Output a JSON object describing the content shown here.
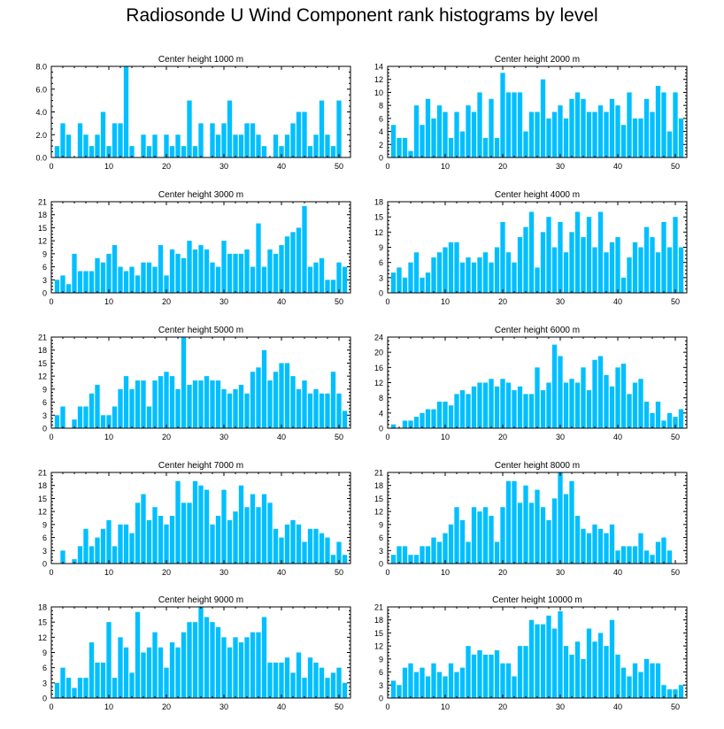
{
  "title": "Radiosonde U Wind Component rank histograms by level",
  "bar_color": "#00bfff",
  "chart_data": [
    {
      "type": "bar",
      "title": "Center height 1000 m",
      "xlabel": "",
      "ylabel": "",
      "xlim": [
        0,
        52
      ],
      "ylim": [
        0,
        8
      ],
      "xticks": [
        0,
        10,
        20,
        30,
        40,
        50
      ],
      "yticks": [
        0,
        2,
        4,
        6,
        8
      ],
      "ytick_labels": [
        "0.0",
        "2.0",
        "4.0",
        "6.0",
        "8.0"
      ],
      "categories": [
        1,
        2,
        3,
        4,
        5,
        6,
        7,
        8,
        9,
        10,
        11,
        12,
        13,
        14,
        15,
        16,
        17,
        18,
        19,
        20,
        21,
        22,
        23,
        24,
        25,
        26,
        27,
        28,
        29,
        30,
        31,
        32,
        33,
        34,
        35,
        36,
        37,
        38,
        39,
        40,
        41,
        42,
        43,
        44,
        45,
        46,
        47,
        48,
        49,
        50,
        51
      ],
      "values": [
        1,
        3,
        2,
        0,
        3,
        2,
        1,
        2,
        4,
        1,
        3,
        3,
        8,
        1,
        0,
        2,
        1,
        2,
        0,
        2,
        1,
        2,
        1,
        5,
        1,
        3,
        0,
        3,
        2,
        3,
        5,
        2,
        2,
        3,
        3,
        2,
        1,
        0,
        2,
        1,
        2,
        3,
        4,
        4,
        1,
        2,
        5,
        2,
        1,
        5,
        0
      ]
    },
    {
      "type": "bar",
      "title": "Center height 2000 m",
      "xlabel": "",
      "ylabel": "",
      "xlim": [
        0,
        52
      ],
      "ylim": [
        0,
        14
      ],
      "xticks": [
        0,
        10,
        20,
        30,
        40,
        50
      ],
      "yticks": [
        0,
        2,
        4,
        6,
        8,
        10,
        12,
        14
      ],
      "ytick_labels": [
        "0",
        "2",
        "4",
        "6",
        "8",
        "10",
        "12",
        "14"
      ],
      "categories": [
        1,
        2,
        3,
        4,
        5,
        6,
        7,
        8,
        9,
        10,
        11,
        12,
        13,
        14,
        15,
        16,
        17,
        18,
        19,
        20,
        21,
        22,
        23,
        24,
        25,
        26,
        27,
        28,
        29,
        30,
        31,
        32,
        33,
        34,
        35,
        36,
        37,
        38,
        39,
        40,
        41,
        42,
        43,
        44,
        45,
        46,
        47,
        48,
        49,
        50,
        51
      ],
      "values": [
        5,
        3,
        3,
        1,
        8,
        5,
        9,
        6,
        8,
        7,
        3,
        7,
        4,
        8,
        7,
        10,
        3,
        9,
        3,
        13,
        10,
        10,
        10,
        4,
        7,
        7,
        12,
        6,
        7,
        8,
        6,
        9,
        10,
        9,
        7,
        7,
        8,
        7,
        9,
        8,
        5,
        10,
        6,
        6,
        9,
        7,
        11,
        10,
        4,
        10,
        6
      ]
    },
    {
      "type": "bar",
      "title": "Center height 3000 m",
      "xlabel": "",
      "ylabel": "",
      "xlim": [
        0,
        52
      ],
      "ylim": [
        0,
        21
      ],
      "xticks": [
        0,
        10,
        20,
        30,
        40,
        50
      ],
      "yticks": [
        0,
        3,
        6,
        9,
        12,
        15,
        18,
        21
      ],
      "ytick_labels": [
        "0",
        "3",
        "6",
        "9",
        "12",
        "15",
        "18",
        "21"
      ],
      "categories": [
        1,
        2,
        3,
        4,
        5,
        6,
        7,
        8,
        9,
        10,
        11,
        12,
        13,
        14,
        15,
        16,
        17,
        18,
        19,
        20,
        21,
        22,
        23,
        24,
        25,
        26,
        27,
        28,
        29,
        30,
        31,
        32,
        33,
        34,
        35,
        36,
        37,
        38,
        39,
        40,
        41,
        42,
        43,
        44,
        45,
        46,
        47,
        48,
        49,
        50,
        51
      ],
      "values": [
        3,
        4,
        2,
        9,
        5,
        5,
        5,
        8,
        7,
        9,
        11,
        6,
        5,
        6,
        4,
        7,
        7,
        6,
        11,
        4,
        10,
        9,
        8,
        12,
        10,
        11,
        10,
        7,
        6,
        12,
        9,
        9,
        9,
        10,
        6,
        16,
        6,
        10,
        9,
        11,
        13,
        14,
        15,
        20,
        6,
        7,
        8,
        3,
        3,
        7,
        6
      ]
    },
    {
      "type": "bar",
      "title": "Center height 4000 m",
      "xlabel": "",
      "ylabel": "",
      "xlim": [
        0,
        52
      ],
      "ylim": [
        0,
        18
      ],
      "xticks": [
        0,
        10,
        20,
        30,
        40,
        50
      ],
      "yticks": [
        0,
        3,
        6,
        9,
        12,
        15,
        18
      ],
      "ytick_labels": [
        "0",
        "3",
        "6",
        "9",
        "12",
        "15",
        "18"
      ],
      "categories": [
        1,
        2,
        3,
        4,
        5,
        6,
        7,
        8,
        9,
        10,
        11,
        12,
        13,
        14,
        15,
        16,
        17,
        18,
        19,
        20,
        21,
        22,
        23,
        24,
        25,
        26,
        27,
        28,
        29,
        30,
        31,
        32,
        33,
        34,
        35,
        36,
        37,
        38,
        39,
        40,
        41,
        42,
        43,
        44,
        45,
        46,
        47,
        48,
        49,
        50,
        51
      ],
      "values": [
        4,
        5,
        3,
        6,
        8,
        3,
        4,
        7,
        8,
        9,
        10,
        10,
        6,
        7,
        6,
        7,
        8,
        6,
        9,
        14,
        8,
        6,
        11,
        13,
        16,
        5,
        12,
        15,
        9,
        14,
        8,
        12,
        16,
        11,
        15,
        9,
        16,
        8,
        10,
        11,
        3,
        7,
        10,
        9,
        13,
        11,
        8,
        14,
        9,
        15,
        9
      ]
    },
    {
      "type": "bar",
      "title": "Center height 5000 m",
      "xlabel": "",
      "ylabel": "",
      "xlim": [
        0,
        52
      ],
      "ylim": [
        0,
        21
      ],
      "xticks": [
        0,
        10,
        20,
        30,
        40,
        50
      ],
      "yticks": [
        0,
        3,
        6,
        9,
        12,
        15,
        18,
        21
      ],
      "ytick_labels": [
        "0",
        "3",
        "6",
        "9",
        "12",
        "15",
        "18",
        "21"
      ],
      "categories": [
        1,
        2,
        3,
        4,
        5,
        6,
        7,
        8,
        9,
        10,
        11,
        12,
        13,
        14,
        15,
        16,
        17,
        18,
        19,
        20,
        21,
        22,
        23,
        24,
        25,
        26,
        27,
        28,
        29,
        30,
        31,
        32,
        33,
        34,
        35,
        36,
        37,
        38,
        39,
        40,
        41,
        42,
        43,
        44,
        45,
        46,
        47,
        48,
        49,
        50,
        51
      ],
      "values": [
        3,
        5,
        0,
        2,
        5,
        5,
        8,
        10,
        3,
        3,
        5,
        9,
        12,
        9,
        11,
        11,
        5,
        11,
        12,
        13,
        12,
        9,
        21,
        10,
        11,
        11,
        12,
        11,
        11,
        9,
        8,
        9,
        10,
        8,
        13,
        14,
        18,
        11,
        13,
        15,
        15,
        12,
        9,
        11,
        8,
        9,
        8,
        8,
        13,
        8,
        4
      ]
    },
    {
      "type": "bar",
      "title": "Center height 6000 m",
      "xlabel": "",
      "ylabel": "",
      "xlim": [
        0,
        52
      ],
      "ylim": [
        0,
        24
      ],
      "xticks": [
        0,
        10,
        20,
        30,
        40,
        50
      ],
      "yticks": [
        0,
        4,
        8,
        12,
        16,
        20,
        24
      ],
      "ytick_labels": [
        "0",
        "4",
        "8",
        "12",
        "16",
        "20",
        "24"
      ],
      "categories": [
        1,
        2,
        3,
        4,
        5,
        6,
        7,
        8,
        9,
        10,
        11,
        12,
        13,
        14,
        15,
        16,
        17,
        18,
        19,
        20,
        21,
        22,
        23,
        24,
        25,
        26,
        27,
        28,
        29,
        30,
        31,
        32,
        33,
        34,
        35,
        36,
        37,
        38,
        39,
        40,
        41,
        42,
        43,
        44,
        45,
        46,
        47,
        48,
        49,
        50,
        51
      ],
      "values": [
        1,
        0,
        2,
        2,
        3,
        4,
        5,
        5,
        7,
        7,
        6,
        9,
        10,
        9,
        11,
        12,
        12,
        13,
        11,
        13,
        12,
        10,
        11,
        9,
        9,
        16,
        10,
        12,
        22,
        19,
        12,
        13,
        12,
        16,
        10,
        18,
        19,
        14,
        11,
        16,
        17,
        9,
        12,
        13,
        7,
        4,
        7,
        2,
        4,
        3,
        5
      ]
    },
    {
      "type": "bar",
      "title": "Center height 7000 m",
      "xlabel": "",
      "ylabel": "",
      "xlim": [
        0,
        52
      ],
      "ylim": [
        0,
        21
      ],
      "xticks": [
        0,
        10,
        20,
        30,
        40,
        50
      ],
      "yticks": [
        0,
        3,
        6,
        9,
        12,
        15,
        18,
        21
      ],
      "ytick_labels": [
        "0",
        "3",
        "6",
        "9",
        "12",
        "15",
        "18",
        "21"
      ],
      "categories": [
        1,
        2,
        3,
        4,
        5,
        6,
        7,
        8,
        9,
        10,
        11,
        12,
        13,
        14,
        15,
        16,
        17,
        18,
        19,
        20,
        21,
        22,
        23,
        24,
        25,
        26,
        27,
        28,
        29,
        30,
        31,
        32,
        33,
        34,
        35,
        36,
        37,
        38,
        39,
        40,
        41,
        42,
        43,
        44,
        45,
        46,
        47,
        48,
        49,
        50,
        51
      ],
      "values": [
        0,
        3,
        0,
        1,
        4,
        8,
        4,
        6,
        8,
        10,
        4,
        9,
        9,
        7,
        14,
        16,
        10,
        13,
        11,
        9,
        11,
        19,
        14,
        14,
        19,
        18,
        17,
        9,
        11,
        17,
        10,
        12,
        18,
        13,
        16,
        13,
        16,
        14,
        8,
        6,
        9,
        10,
        9,
        5,
        8,
        8,
        7,
        6,
        2,
        5,
        2
      ]
    },
    {
      "type": "bar",
      "title": "Center height 8000 m",
      "xlabel": "",
      "ylabel": "",
      "xlim": [
        0,
        52
      ],
      "ylim": [
        0,
        21
      ],
      "xticks": [
        0,
        10,
        20,
        30,
        40,
        50
      ],
      "yticks": [
        0,
        3,
        6,
        9,
        12,
        15,
        18,
        21
      ],
      "ytick_labels": [
        "0",
        "3",
        "6",
        "9",
        "12",
        "15",
        "18",
        "21"
      ],
      "categories": [
        1,
        2,
        3,
        4,
        5,
        6,
        7,
        8,
        9,
        10,
        11,
        12,
        13,
        14,
        15,
        16,
        17,
        18,
        19,
        20,
        21,
        22,
        23,
        24,
        25,
        26,
        27,
        28,
        29,
        30,
        31,
        32,
        33,
        34,
        35,
        36,
        37,
        38,
        39,
        40,
        41,
        42,
        43,
        44,
        45,
        46,
        47,
        48,
        49,
        50,
        51
      ],
      "values": [
        2,
        4,
        4,
        2,
        2,
        4,
        4,
        6,
        5,
        7,
        9,
        13,
        10,
        5,
        13,
        12,
        13,
        11,
        5,
        13,
        19,
        19,
        14,
        18,
        14,
        17,
        13,
        10,
        15,
        21,
        16,
        19,
        11,
        8,
        7,
        9,
        8,
        7,
        9,
        3,
        4,
        4,
        4,
        7,
        3,
        2,
        5,
        6,
        3,
        0,
        0
      ]
    },
    {
      "type": "bar",
      "title": "Center height 9000 m",
      "xlabel": "",
      "ylabel": "",
      "xlim": [
        0,
        52
      ],
      "ylim": [
        0,
        18
      ],
      "xticks": [
        0,
        10,
        20,
        30,
        40,
        50
      ],
      "yticks": [
        0,
        3,
        6,
        9,
        12,
        15,
        18
      ],
      "ytick_labels": [
        "0",
        "3",
        "6",
        "9",
        "12",
        "15",
        "18"
      ],
      "categories": [
        1,
        2,
        3,
        4,
        5,
        6,
        7,
        8,
        9,
        10,
        11,
        12,
        13,
        14,
        15,
        16,
        17,
        18,
        19,
        20,
        21,
        22,
        23,
        24,
        25,
        26,
        27,
        28,
        29,
        30,
        31,
        32,
        33,
        34,
        35,
        36,
        37,
        38,
        39,
        40,
        41,
        42,
        43,
        44,
        45,
        46,
        47,
        48,
        49,
        50,
        51
      ],
      "values": [
        3,
        6,
        4,
        2,
        4,
        4,
        11,
        7,
        7,
        15,
        4,
        12,
        10,
        5,
        17,
        9,
        10,
        13,
        10,
        6,
        11,
        10,
        13,
        15,
        15,
        18,
        16,
        15,
        14,
        12,
        10,
        12,
        11,
        12,
        13,
        13,
        16,
        7,
        7,
        7,
        8,
        5,
        9,
        4,
        8,
        7,
        6,
        4,
        5,
        6,
        3
      ]
    },
    {
      "type": "bar",
      "title": "Center height 10000 m",
      "xlabel": "",
      "ylabel": "",
      "xlim": [
        0,
        52
      ],
      "ylim": [
        0,
        21
      ],
      "xticks": [
        0,
        10,
        20,
        30,
        40,
        50
      ],
      "yticks": [
        0,
        3,
        6,
        9,
        12,
        15,
        18,
        21
      ],
      "ytick_labels": [
        "0",
        "3",
        "6",
        "9",
        "12",
        "15",
        "18",
        "21"
      ],
      "categories": [
        1,
        2,
        3,
        4,
        5,
        6,
        7,
        8,
        9,
        10,
        11,
        12,
        13,
        14,
        15,
        16,
        17,
        18,
        19,
        20,
        21,
        22,
        23,
        24,
        25,
        26,
        27,
        28,
        29,
        30,
        31,
        32,
        33,
        34,
        35,
        36,
        37,
        38,
        39,
        40,
        41,
        42,
        43,
        44,
        45,
        46,
        47,
        48,
        49,
        50,
        51
      ],
      "values": [
        4,
        3,
        7,
        8,
        6,
        7,
        5,
        8,
        6,
        5,
        8,
        6,
        7,
        12,
        10,
        11,
        10,
        10,
        11,
        8,
        8,
        5,
        12,
        12,
        18,
        17,
        17,
        19,
        16,
        20,
        12,
        10,
        13,
        9,
        16,
        13,
        15,
        12,
        18,
        10,
        7,
        5,
        8,
        6,
        9,
        8,
        8,
        3,
        2,
        2,
        3
      ]
    }
  ]
}
